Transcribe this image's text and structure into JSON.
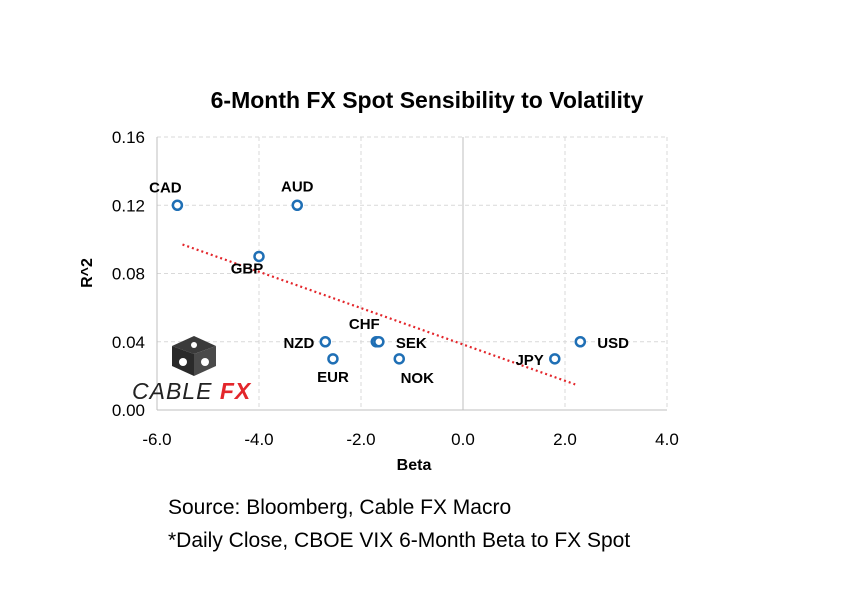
{
  "chart_data": {
    "type": "scatter",
    "title": "6-Month FX Spot Sensibility to Volatility",
    "xlabel": "Beta",
    "ylabel": "R^2",
    "xlim": [
      -6.0,
      4.0
    ],
    "ylim": [
      0.0,
      0.16
    ],
    "x_ticks": [
      -6.0,
      -4.0,
      -2.0,
      0.0,
      2.0,
      4.0
    ],
    "x_tick_labels": [
      "-6.0",
      "-4.0",
      "-2.0",
      "0.0",
      "2.0",
      "4.0"
    ],
    "y_ticks": [
      0.0,
      0.04,
      0.08,
      0.12,
      0.16
    ],
    "y_tick_labels": [
      "0.00",
      "0.04",
      "0.08",
      "0.12",
      "0.16"
    ],
    "grid": true,
    "marker_color": "#1f6fb5",
    "trendline_color": "#e3262b",
    "trendline": {
      "x": [
        -5.5,
        2.2
      ],
      "y": [
        0.097,
        0.015
      ]
    },
    "points": [
      {
        "label": "CAD",
        "x": -5.6,
        "y": 0.12,
        "label_pos": "above-left"
      },
      {
        "label": "AUD",
        "x": -3.25,
        "y": 0.12,
        "label_pos": "above"
      },
      {
        "label": "GBP",
        "x": -4.0,
        "y": 0.09,
        "label_pos": "below-left"
      },
      {
        "label": "NZD",
        "x": -2.7,
        "y": 0.04,
        "label_pos": "left"
      },
      {
        "label": "EUR",
        "x": -2.55,
        "y": 0.03,
        "label_pos": "below"
      },
      {
        "label": "CHF",
        "x": -1.7,
        "y": 0.04,
        "label_pos": "above-left"
      },
      {
        "label": "SEK",
        "x": -1.65,
        "y": 0.04,
        "label_pos": "right"
      },
      {
        "label": "NOK",
        "x": -1.25,
        "y": 0.03,
        "label_pos": "below-right"
      },
      {
        "label": "JPY",
        "x": 1.8,
        "y": 0.03,
        "label_pos": "left"
      },
      {
        "label": "USD",
        "x": 2.3,
        "y": 0.04,
        "label_pos": "right"
      }
    ]
  },
  "notes": {
    "source": "Source: Bloomberg, Cable FX Macro",
    "close": "*Daily Close, CBOE VIX 6-Month Beta to FX Spot"
  },
  "logo": {
    "word1": "CABLE",
    "word2": "FX"
  }
}
